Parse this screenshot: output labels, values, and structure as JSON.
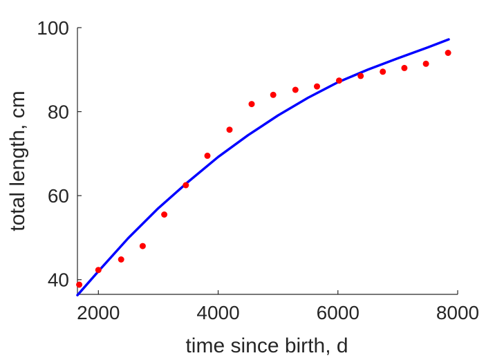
{
  "chart_data": {
    "type": "scatter",
    "title": "",
    "xlabel": "time since birth, d",
    "ylabel": "total length, cm",
    "xlim": [
      1650,
      8000
    ],
    "ylim": [
      36.5,
      100
    ],
    "xticks": [
      2000,
      4000,
      6000,
      8000
    ],
    "yticks": [
      40,
      60,
      80,
      100
    ],
    "grid": false,
    "legend": "none",
    "series": [
      {
        "kind": "points",
        "color": "#ff0000",
        "x": [
          1680,
          2000,
          2380,
          2740,
          3100,
          3460,
          3820,
          4190,
          4560,
          4920,
          5290,
          5650,
          6020,
          6380,
          6750,
          7110,
          7470,
          7840
        ],
        "y": [
          38.8,
          42.3,
          44.8,
          48.0,
          55.5,
          62.5,
          69.5,
          75.7,
          81.8,
          84.0,
          85.2,
          86.0,
          87.4,
          88.5,
          89.5,
          90.4,
          91.4,
          94.0
        ]
      },
      {
        "kind": "line",
        "color": "#0000ff",
        "x": [
          1650,
          2000,
          2500,
          3000,
          3500,
          4000,
          4500,
          5000,
          5500,
          6000,
          6500,
          7000,
          7500,
          7850
        ],
        "y": [
          36.3,
          42.0,
          49.9,
          57.0,
          63.3,
          69.2,
          74.4,
          79.1,
          83.3,
          87.0,
          90.0,
          92.7,
          95.3,
          97.2
        ]
      }
    ]
  }
}
